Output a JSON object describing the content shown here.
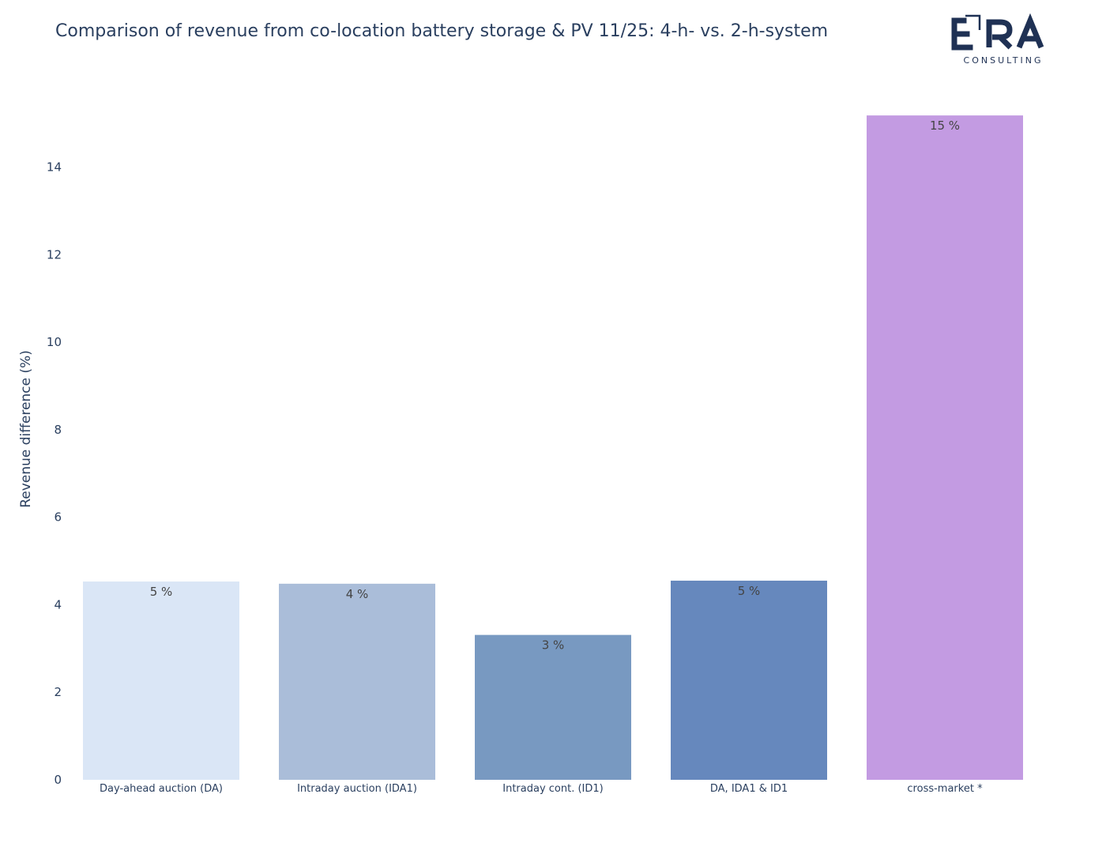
{
  "logo": {
    "wordmark": "ERA",
    "subtitle": "CONSULTING",
    "color": "#1f3154"
  },
  "chart_data": {
    "type": "bar",
    "title": "Comparison of revenue from co-location battery storage & PV 11/25: 4-h- vs. 2-h-system",
    "xlabel": "",
    "ylabel": "Revenue difference (%)",
    "ylim": [
      0,
      15.2
    ],
    "yticks": [
      0,
      2,
      4,
      6,
      8,
      10,
      12,
      14
    ],
    "grid": false,
    "categories": [
      "Day-ahead auction (DA)",
      "Intraday auction (IDA1)",
      "Intraday cont. (ID1)",
      "DA, IDA1 & ID1",
      "cross-market *"
    ],
    "values": [
      4.53,
      4.48,
      3.31,
      4.55,
      15.18
    ],
    "data_labels": [
      "5 %",
      "4 %",
      "3 %",
      "5 %",
      "15 %"
    ],
    "colors": [
      "#dae6f6",
      "#aabdd9",
      "#7899c1",
      "#6688bd",
      "#c39be2"
    ]
  }
}
